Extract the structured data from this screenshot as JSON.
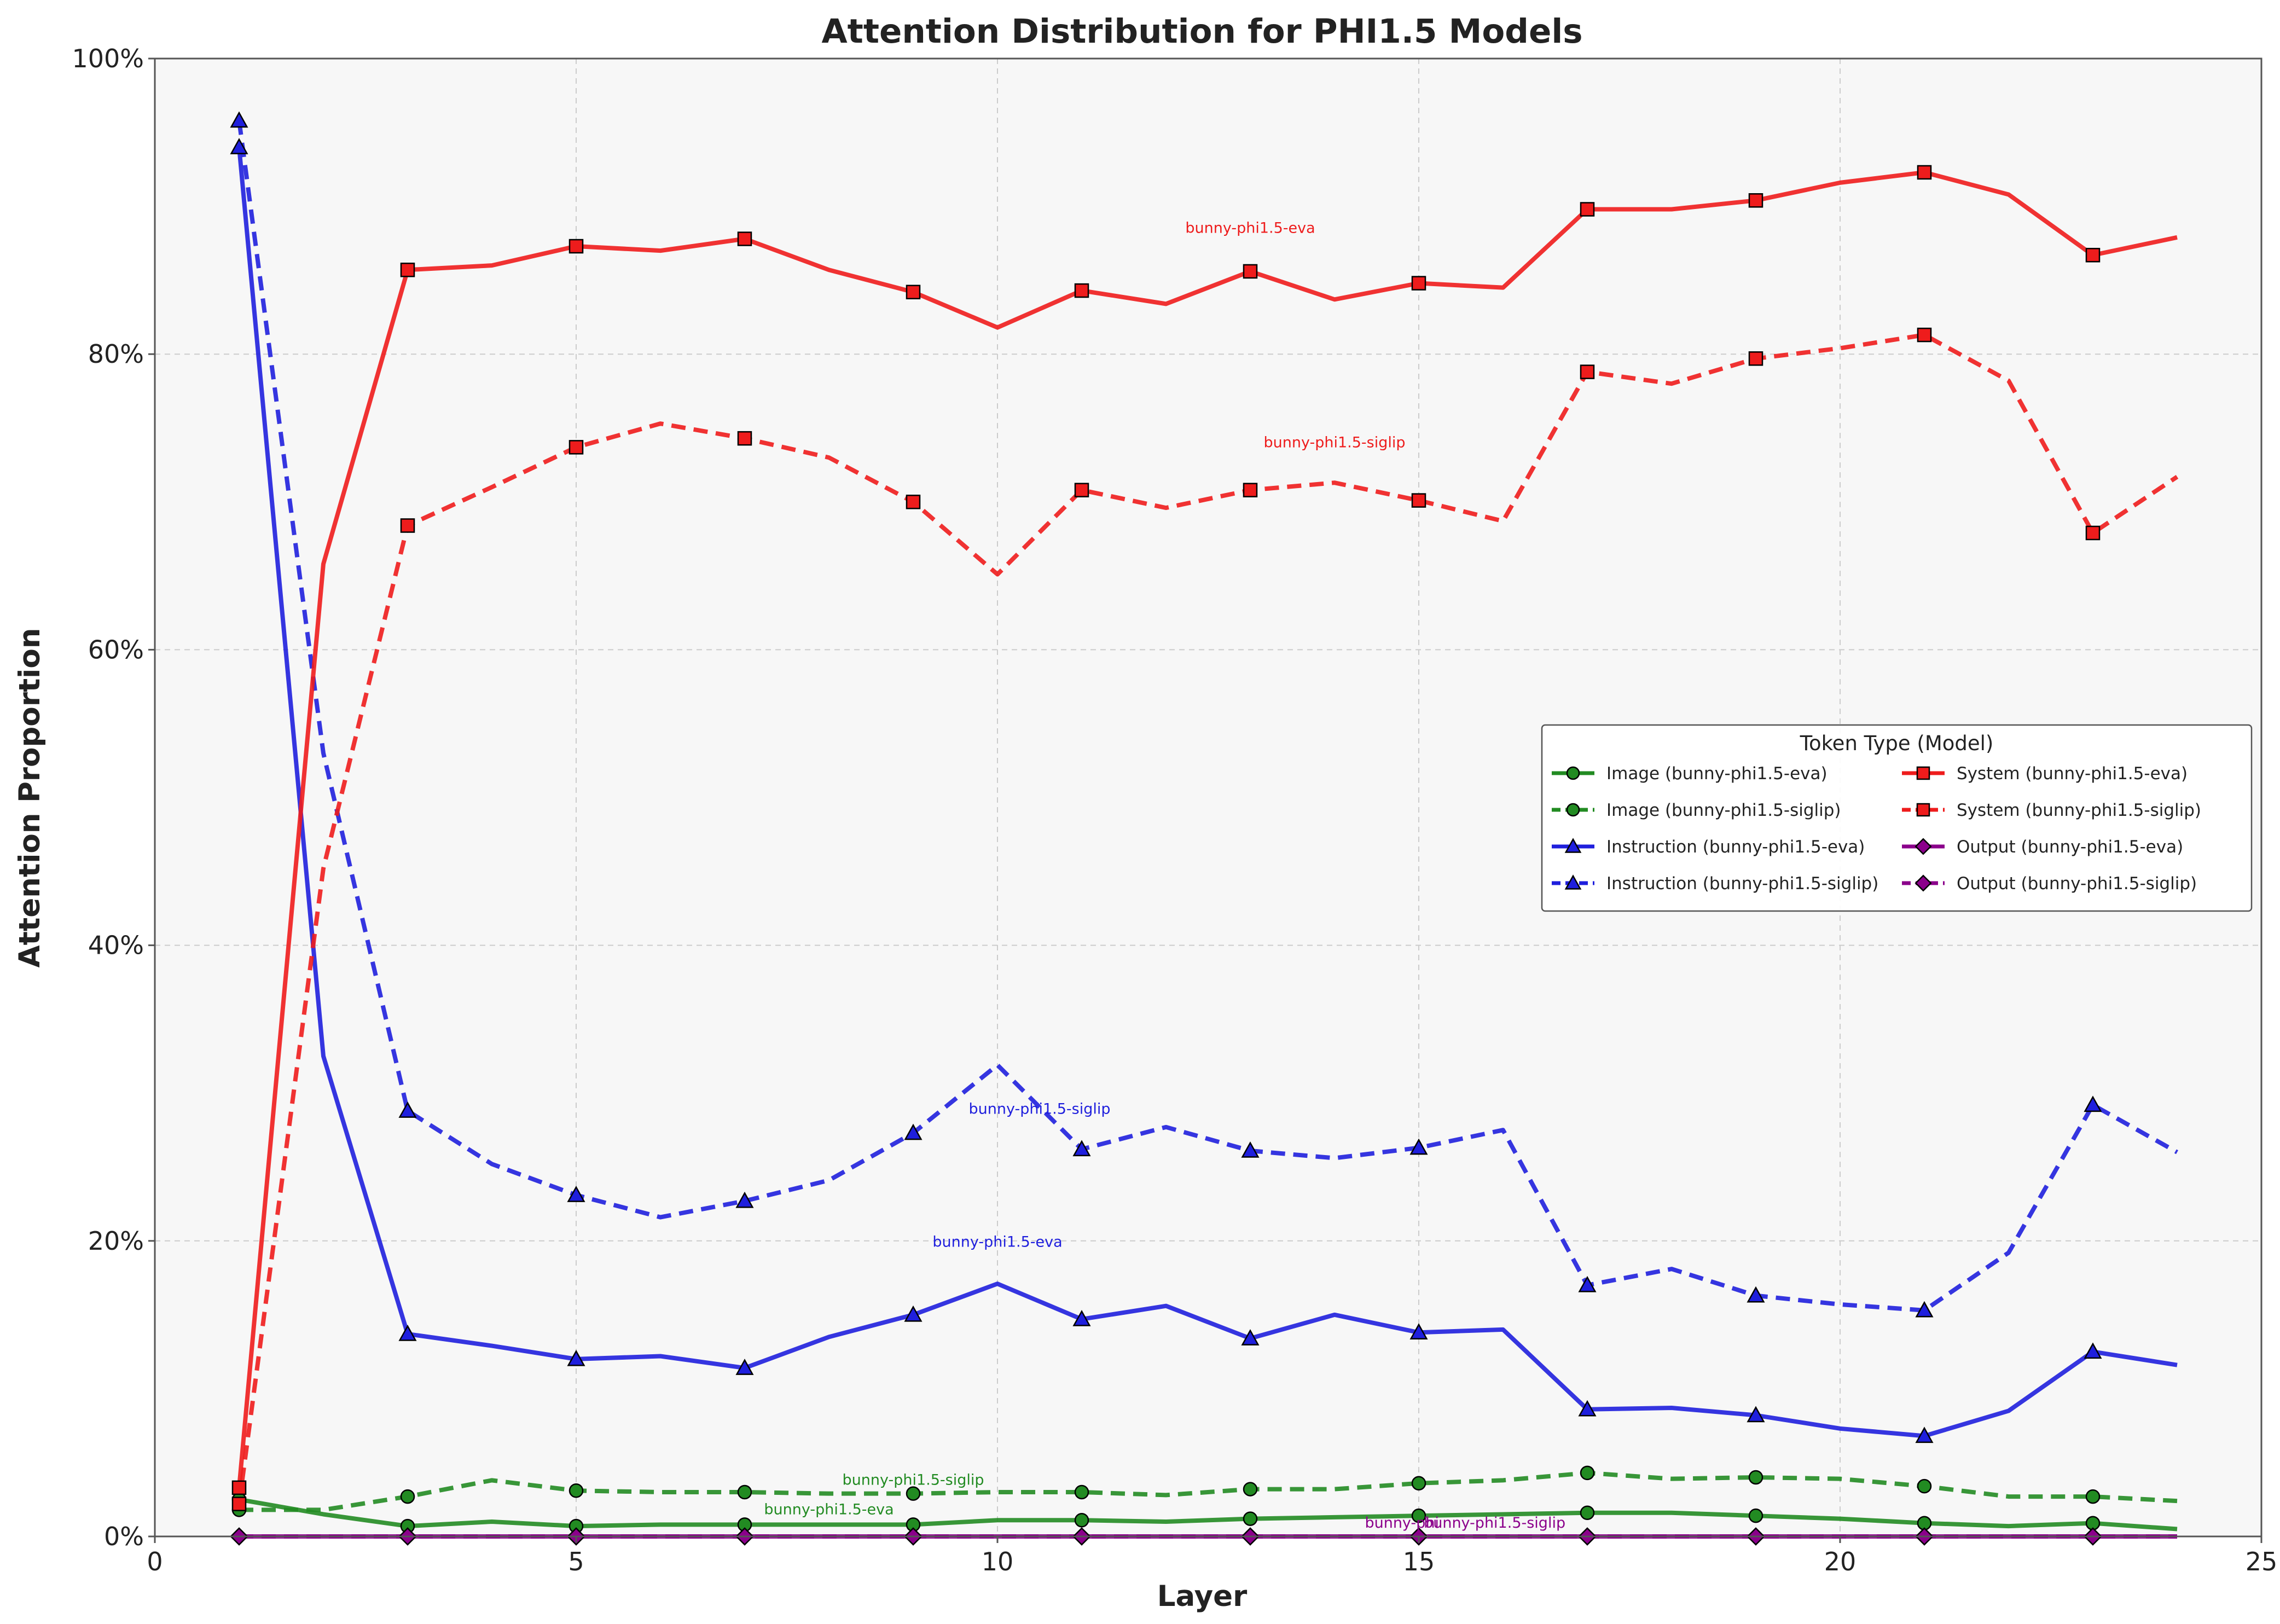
{
  "chart_data": {
    "type": "line",
    "title": "Attention Distribution for PHI1.5 Models",
    "xlabel": "Layer",
    "ylabel": "Attention Proportion",
    "xlim": [
      0,
      25
    ],
    "ylim": [
      0,
      1
    ],
    "x_ticks": [
      0,
      5,
      10,
      15,
      20,
      25
    ],
    "y_ticks": [
      0,
      0.2,
      0.4,
      0.6,
      0.8,
      1.0
    ],
    "x_tick_labels": [
      "0",
      "5",
      "10",
      "15",
      "20",
      "25"
    ],
    "y_tick_labels": [
      "0%",
      "20%",
      "40%",
      "60%",
      "80%",
      "100%"
    ],
    "grid": true,
    "legend": {
      "title": "Token Type (Model)",
      "placement": "center-right",
      "columns": 2
    },
    "x": [
      1,
      2,
      3,
      4,
      5,
      6,
      7,
      8,
      9,
      10,
      11,
      12,
      13,
      14,
      15,
      16,
      17,
      18,
      19,
      20,
      21,
      22,
      23,
      24
    ],
    "series": [
      {
        "name": "Image (bunny-phi1.5-eva)",
        "color": "#228B22",
        "dash": "solid",
        "marker": "circle",
        "values": [
          0.025,
          0.015,
          0.007,
          0.01,
          0.007,
          0.008,
          0.008,
          0.008,
          0.008,
          0.011,
          0.011,
          0.01,
          0.012,
          0.013,
          0.014,
          0.015,
          0.016,
          0.016,
          0.014,
          0.012,
          0.009,
          0.007,
          0.009,
          0.005
        ]
      },
      {
        "name": "Image (bunny-phi1.5-siglip)",
        "color": "#228B22",
        "dash": "dashed",
        "marker": "circle",
        "values": [
          0.018,
          0.018,
          0.027,
          0.038,
          0.031,
          0.03,
          0.03,
          0.029,
          0.029,
          0.03,
          0.03,
          0.028,
          0.032,
          0.032,
          0.036,
          0.038,
          0.043,
          0.039,
          0.04,
          0.039,
          0.034,
          0.027,
          0.027,
          0.024
        ]
      },
      {
        "name": "Instruction (bunny-phi1.5-eva)",
        "color": "#1f1fdd",
        "dash": "solid",
        "marker": "triangle",
        "values": [
          0.94,
          0.325,
          0.137,
          0.129,
          0.12,
          0.122,
          0.114,
          0.135,
          0.15,
          0.171,
          0.147,
          0.156,
          0.134,
          0.15,
          0.138,
          0.14,
          0.086,
          0.087,
          0.082,
          0.073,
          0.068,
          0.085,
          0.125,
          0.116
        ]
      },
      {
        "name": "Instruction (bunny-phi1.5-siglip)",
        "color": "#1f1fdd",
        "dash": "dashed",
        "marker": "triangle",
        "values": [
          0.958,
          0.53,
          0.288,
          0.252,
          0.231,
          0.216,
          0.227,
          0.241,
          0.273,
          0.319,
          0.262,
          0.277,
          0.261,
          0.256,
          0.263,
          0.275,
          0.17,
          0.181,
          0.163,
          0.157,
          0.153,
          0.192,
          0.292,
          0.26
        ]
      },
      {
        "name": "System (bunny-phi1.5-eva)",
        "color": "#ee1c1c",
        "dash": "solid",
        "marker": "square",
        "values": [
          0.033,
          0.658,
          0.857,
          0.86,
          0.873,
          0.87,
          0.878,
          0.857,
          0.842,
          0.818,
          0.843,
          0.834,
          0.856,
          0.837,
          0.848,
          0.845,
          0.898,
          0.898,
          0.904,
          0.916,
          0.923,
          0.908,
          0.867,
          0.879
        ]
      },
      {
        "name": "System (bunny-phi1.5-siglip)",
        "color": "#ee1c1c",
        "dash": "dashed",
        "marker": "square",
        "values": [
          0.022,
          0.452,
          0.684,
          0.71,
          0.737,
          0.753,
          0.743,
          0.73,
          0.7,
          0.651,
          0.708,
          0.696,
          0.708,
          0.713,
          0.701,
          0.687,
          0.788,
          0.78,
          0.797,
          0.804,
          0.813,
          0.782,
          0.679,
          0.717
        ]
      },
      {
        "name": "Output (bunny-phi1.5-eva)",
        "color": "#8B008B",
        "dash": "solid",
        "marker": "diamond",
        "values": [
          0,
          0,
          0,
          0,
          0,
          0,
          0,
          0,
          0,
          0,
          0,
          0,
          0,
          0,
          0,
          0,
          0,
          0,
          0,
          0,
          0,
          0,
          0,
          0
        ]
      },
      {
        "name": "Output (bunny-phi1.5-siglip)",
        "color": "#8B008B",
        "dash": "dashed",
        "marker": "diamond",
        "values": [
          0,
          0,
          0,
          0,
          0,
          0,
          0,
          0,
          0,
          0,
          0,
          0,
          0,
          0,
          0,
          0,
          0,
          0,
          0,
          0,
          0,
          0,
          0,
          0
        ]
      }
    ],
    "annotations": [
      {
        "text": "bunny-phi1.5-eva",
        "x": 13,
        "y": 0.882,
        "color": "#ee1c1c"
      },
      {
        "text": "bunny-phi1.5-siglip",
        "x": 14,
        "y": 0.737,
        "color": "#ee1c1c"
      },
      {
        "text": "bunny-phi1.5-siglip",
        "x": 10.5,
        "y": 0.286,
        "color": "#1f1fdd"
      },
      {
        "text": "bunny-phi1.5-eva",
        "x": 10,
        "y": 0.196,
        "color": "#1f1fdd"
      },
      {
        "text": "bunny-phi1.5-siglip",
        "x": 9,
        "y": 0.035,
        "color": "#228B22"
      },
      {
        "text": "bunny-phi1.5-eva",
        "x": 8,
        "y": 0.015,
        "color": "#228B22"
      },
      {
        "text": "bunny-phi",
        "x": 14.8,
        "y": 0.006,
        "color": "#8B008B"
      },
      {
        "text": "bunny-phi1.5-siglip",
        "x": 15.9,
        "y": 0.006,
        "color": "#8B008B"
      }
    ]
  }
}
